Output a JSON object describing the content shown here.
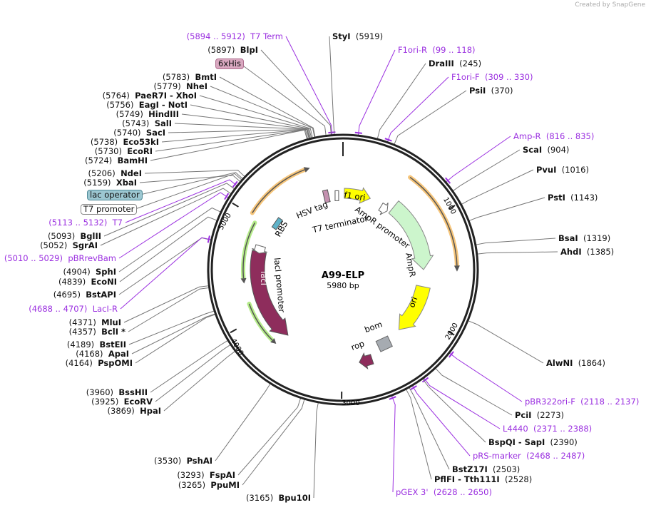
{
  "credit": "Created by SnapGene",
  "map": {
    "name": "A99-ELP",
    "length_label": "5980 bp",
    "length": 5980
  },
  "ticks": [
    "1000",
    "2000",
    "3000",
    "4000",
    "5000"
  ],
  "feature_boxes": [
    {
      "name": "6xHis",
      "color": "#d9a8c0"
    },
    {
      "name": "lac operator",
      "color": "#9cc7d1"
    },
    {
      "name": "T7 promoter",
      "color": "#ffffff"
    }
  ],
  "labels": [
    {
      "kind": "primer",
      "range": "(5894 .. 5912)",
      "name": "T7 Term",
      "bp": 5903
    },
    {
      "kind": "enzyme",
      "pos": "(5897)",
      "name": "BlpI",
      "bp": 5897
    },
    {
      "kind": "enzyme",
      "pos": "(5783)",
      "name": "BmtI",
      "bp": 5783
    },
    {
      "kind": "enzyme",
      "pos": "(5779)",
      "name": "NheI",
      "bp": 5779
    },
    {
      "kind": "enzyme",
      "pos": "(5764)",
      "name": "PaeR7I  - XhoI",
      "bp": 5764
    },
    {
      "kind": "enzyme",
      "pos": "(5756)",
      "name": "EagI  - NotI",
      "bp": 5756
    },
    {
      "kind": "enzyme",
      "pos": "(5749)",
      "name": "HindIII",
      "bp": 5749
    },
    {
      "kind": "enzyme",
      "pos": "(5743)",
      "name": "SalI",
      "bp": 5743
    },
    {
      "kind": "enzyme",
      "pos": "(5740)",
      "name": "SacI",
      "bp": 5740
    },
    {
      "kind": "enzyme",
      "pos": "(5738)",
      "name": "Eco53kI",
      "bp": 5738
    },
    {
      "kind": "enzyme",
      "pos": "(5730)",
      "name": "EcoRI",
      "bp": 5730
    },
    {
      "kind": "enzyme",
      "pos": "(5724)",
      "name": "BamHI",
      "bp": 5724
    },
    {
      "kind": "enzyme",
      "pos": "(5206)",
      "name": "NdeI",
      "bp": 5206
    },
    {
      "kind": "enzyme",
      "pos": "(5159)",
      "name": "XbaI",
      "bp": 5159
    },
    {
      "kind": "primer",
      "range": "(5113 .. 5132)",
      "name": "T7",
      "bp": 5122
    },
    {
      "kind": "enzyme",
      "pos": "(5093)",
      "name": "BglII",
      "bp": 5093
    },
    {
      "kind": "enzyme",
      "pos": "(5052)",
      "name": "SgrAI",
      "bp": 5052
    },
    {
      "kind": "primer",
      "range": "(5010 .. 5029)",
      "name": "pBRrevBam",
      "bp": 5019
    },
    {
      "kind": "enzyme",
      "pos": "(4904)",
      "name": "SphI",
      "bp": 4904
    },
    {
      "kind": "enzyme",
      "pos": "(4839)",
      "name": "EcoNI",
      "bp": 4839
    },
    {
      "kind": "enzyme",
      "pos": "(4695)",
      "name": "BstAPI",
      "bp": 4695
    },
    {
      "kind": "primer",
      "range": "(4688 .. 4707)",
      "name": "LacI-R",
      "bp": 4697
    },
    {
      "kind": "enzyme",
      "pos": "(4371)",
      "name": "MluI",
      "bp": 4371
    },
    {
      "kind": "enzyme",
      "pos": "(4357)",
      "name": "BclI *",
      "bp": 4357
    },
    {
      "kind": "enzyme",
      "pos": "(4189)",
      "name": "BstEII",
      "bp": 4189
    },
    {
      "kind": "enzyme",
      "pos": "(4168)",
      "name": "ApaI",
      "bp": 4168
    },
    {
      "kind": "enzyme",
      "pos": "(4164)",
      "name": "PspOMI",
      "bp": 4164
    },
    {
      "kind": "enzyme",
      "pos": "(3960)",
      "name": "BssHII",
      "bp": 3960
    },
    {
      "kind": "enzyme",
      "pos": "(3925)",
      "name": "EcoRV",
      "bp": 3925
    },
    {
      "kind": "enzyme",
      "pos": "(3869)",
      "name": "HpaI",
      "bp": 3869
    },
    {
      "kind": "enzyme",
      "pos": "(3530)",
      "name": "PshAI",
      "bp": 3530
    },
    {
      "kind": "enzyme",
      "pos": "(3293)",
      "name": "FspAI",
      "bp": 3293
    },
    {
      "kind": "enzyme",
      "pos": "(3265)",
      "name": "PpuMI",
      "bp": 3265
    },
    {
      "kind": "enzyme",
      "pos": "(3165)",
      "name": "Bpu10I",
      "bp": 3165
    },
    {
      "kind": "enzyme",
      "pos": "(5919)",
      "name": "StyI",
      "bp": 5919
    },
    {
      "kind": "primer",
      "range": "(99 .. 118)",
      "name": "F1ori-R",
      "bp": 108
    },
    {
      "kind": "enzyme",
      "pos": "(245)",
      "name": "DraIII",
      "bp": 245
    },
    {
      "kind": "primer",
      "range": "(309 .. 330)",
      "name": "F1ori-F",
      "bp": 320
    },
    {
      "kind": "enzyme",
      "pos": "(370)",
      "name": "PsiI",
      "bp": 370
    },
    {
      "kind": "primer",
      "range": "(816 .. 835)",
      "name": "Amp-R",
      "bp": 825
    },
    {
      "kind": "enzyme",
      "pos": "(904)",
      "name": "ScaI",
      "bp": 904
    },
    {
      "kind": "enzyme",
      "pos": "(1016)",
      "name": "PvuI",
      "bp": 1016
    },
    {
      "kind": "enzyme",
      "pos": "(1143)",
      "name": "PstI",
      "bp": 1143
    },
    {
      "kind": "enzyme",
      "pos": "(1319)",
      "name": "BsaI",
      "bp": 1319
    },
    {
      "kind": "enzyme",
      "pos": "(1385)",
      "name": "AhdI",
      "bp": 1385
    },
    {
      "kind": "enzyme",
      "pos": "(1864)",
      "name": "AlwNI",
      "bp": 1864
    },
    {
      "kind": "primer",
      "range": "(2118 .. 2137)",
      "name": "pBR322ori-F",
      "bp": 2127
    },
    {
      "kind": "enzyme",
      "pos": "(2273)",
      "name": "PciI",
      "bp": 2273
    },
    {
      "kind": "primer",
      "range": "(2371 .. 2388)",
      "name": "L4440",
      "bp": 2379
    },
    {
      "kind": "enzyme",
      "pos": "(2390)",
      "name": "BspQI  - SapI",
      "bp": 2390
    },
    {
      "kind": "primer",
      "range": "(2468 .. 2487)",
      "name": "pRS-marker",
      "bp": 2477
    },
    {
      "kind": "enzyme",
      "pos": "(2503)",
      "name": "BstZ17I",
      "bp": 2503
    },
    {
      "kind": "enzyme",
      "pos": "(2528)",
      "name": "PflFI  - Tth111I",
      "bp": 2528
    },
    {
      "kind": "primer",
      "range": "(2628 .. 2650)",
      "name": "pGEX 3'",
      "bp": 2639
    }
  ],
  "features": {
    "f1_ori": "f1 ori",
    "ampr_promoter": "AmpR promoter",
    "ampr": "AmpR",
    "ori": "ori",
    "bom": "bom",
    "rop": "rop",
    "laci": "lacI",
    "laci_promoter": "lacI promoter",
    "rbs": "RBS",
    "hsv_tag": "HSV tag",
    "t7_terminator": "T7 terminator"
  },
  "colors": {
    "primer": "#9b30e0",
    "yellow": "#ffff00",
    "ampr": "#ccf5cc",
    "maroon": "#8e2d5c",
    "orf": "#f6c57a",
    "green": "#b5ec8a",
    "grey": "#a6abb1"
  }
}
